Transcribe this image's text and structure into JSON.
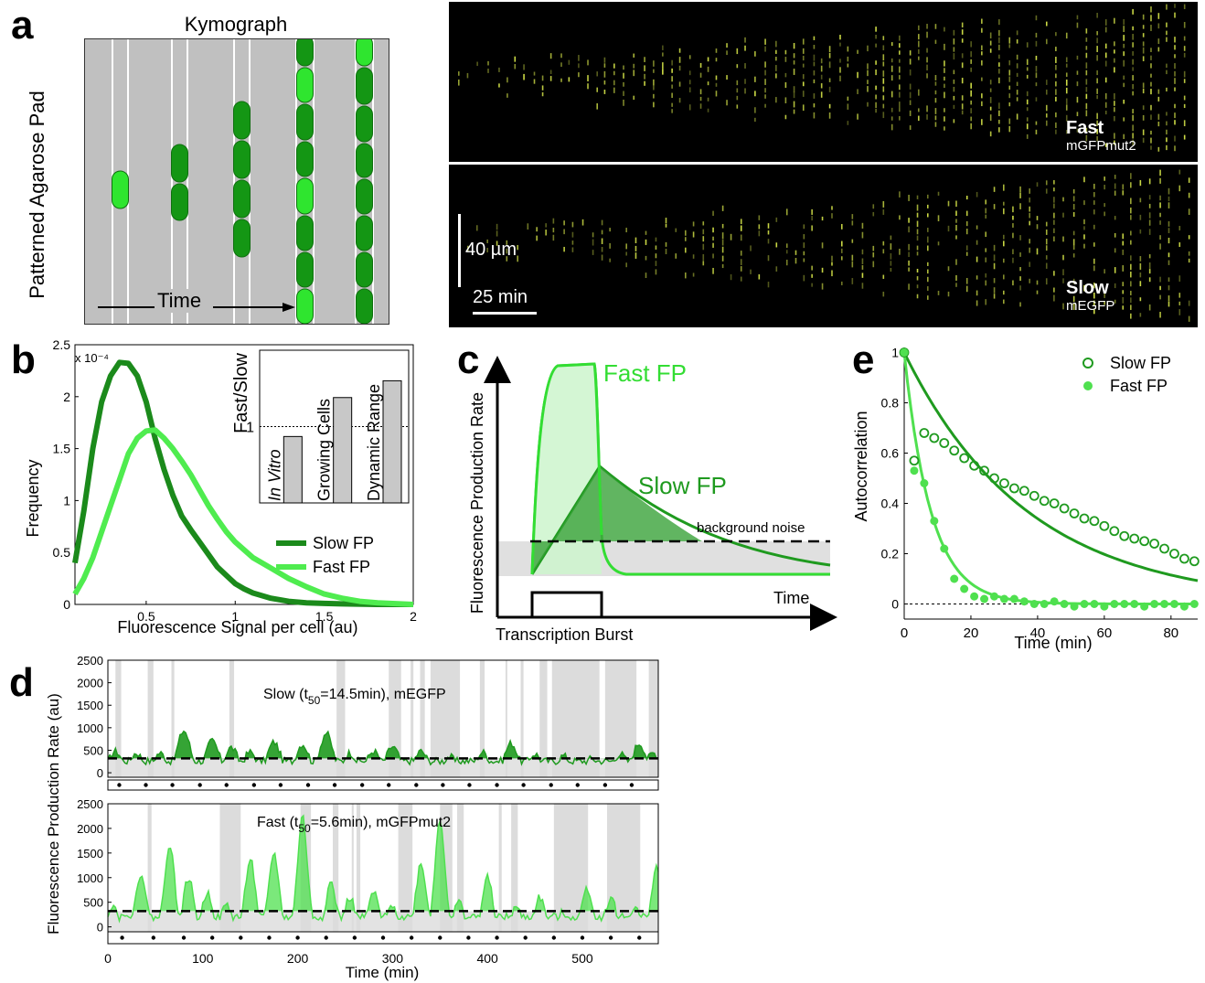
{
  "panel_letters": {
    "a": "a",
    "b": "b",
    "c": "c",
    "d": "d",
    "e": "e"
  },
  "panel_a": {
    "title": "Kymograph",
    "ylabel": "Patterned Agarose Pad",
    "time_label": "Time",
    "top_label": "Fast",
    "top_sublabel": "mGFPmut2",
    "bottom_label": "Slow",
    "bottom_sublabel": "mEGFP",
    "scale_vertical": "40 µm",
    "scale_horizontal": "25 min",
    "colors": {
      "pad": "#c0c0c0",
      "cell_dark": "#149614",
      "cell_light": "#2fe52f",
      "kymo_bg": "#000000",
      "kymo_dots": "#d9e84a"
    }
  },
  "chart_data": [
    {
      "id": "b",
      "type": "line",
      "xlabel": "Fluorescence Signal per cell (au)",
      "ylabel": "Frequency",
      "scale_note": "x 10⁻⁴",
      "xlim": [
        0.1,
        2
      ],
      "ylim": [
        0,
        2.5
      ],
      "xticks": [
        "0.5",
        "1",
        "1.5",
        "2"
      ],
      "yticks": [
        "0",
        "0.5",
        "1",
        "1.5",
        "2",
        "2.5"
      ],
      "series": [
        {
          "name": "Slow FP",
          "color": "#1b8a1b",
          "x": [
            0.1,
            0.15,
            0.2,
            0.25,
            0.3,
            0.35,
            0.4,
            0.45,
            0.5,
            0.55,
            0.6,
            0.65,
            0.7,
            0.75,
            0.8,
            0.85,
            0.9,
            0.95,
            1.0,
            1.05,
            1.1,
            1.2,
            1.3,
            1.4,
            1.5,
            1.6,
            1.8,
            2.0
          ],
          "y": [
            0.4,
            0.9,
            1.5,
            1.95,
            2.2,
            2.33,
            2.32,
            2.2,
            1.95,
            1.6,
            1.3,
            1.05,
            0.85,
            0.72,
            0.6,
            0.48,
            0.36,
            0.28,
            0.2,
            0.15,
            0.11,
            0.06,
            0.03,
            0.015,
            0.01,
            0.005,
            0,
            0
          ]
        },
        {
          "name": "Fast FP",
          "color": "#4fec4f",
          "x": [
            0.1,
            0.15,
            0.2,
            0.25,
            0.3,
            0.35,
            0.4,
            0.45,
            0.5,
            0.55,
            0.6,
            0.65,
            0.7,
            0.75,
            0.8,
            0.85,
            0.9,
            0.95,
            1.0,
            1.1,
            1.2,
            1.3,
            1.4,
            1.5,
            1.6,
            1.7,
            1.8,
            2.0
          ],
          "y": [
            0.1,
            0.25,
            0.45,
            0.7,
            0.95,
            1.2,
            1.45,
            1.6,
            1.67,
            1.68,
            1.6,
            1.5,
            1.38,
            1.25,
            1.1,
            0.95,
            0.82,
            0.7,
            0.6,
            0.45,
            0.35,
            0.25,
            0.17,
            0.1,
            0.06,
            0.03,
            0.015,
            0
          ]
        }
      ],
      "inset": {
        "ylabel": "Fast/Slow",
        "categories": [
          "In Vitro",
          "Growing Cells",
          "Dynamic Range"
        ],
        "values": [
          0.87,
          1.38,
          1.6
        ],
        "ylim": [
          0,
          2
        ],
        "reference_line": 1
      }
    },
    {
      "id": "c",
      "type": "area",
      "ylabel": "Fluorescence Production Rate",
      "xlabel": "Time",
      "burst_label": "Transcription Burst",
      "noise_label": "background noise",
      "series": [
        {
          "name": "Fast FP",
          "color": "#33dd33"
        },
        {
          "name": "Slow FP",
          "color": "#1f9a1f"
        }
      ]
    },
    {
      "id": "e",
      "type": "scatter",
      "xlabel": "Time (min)",
      "ylabel": "Autocorrelation",
      "xlim": [
        0,
        88
      ],
      "ylim": [
        -0.06,
        1.02
      ],
      "xticks": [
        "0",
        "20",
        "40",
        "60",
        "80"
      ],
      "yticks": [
        "0",
        "0.2",
        "0.4",
        "0.6",
        "0.8",
        "1"
      ],
      "series": [
        {
          "name": "Slow FP",
          "marker": "open-circle",
          "color": "#1f9a1f",
          "x": [
            0,
            3,
            6,
            9,
            12,
            15,
            18,
            21,
            24,
            27,
            30,
            33,
            36,
            39,
            42,
            45,
            48,
            51,
            54,
            57,
            60,
            63,
            66,
            69,
            72,
            75,
            78,
            81,
            84,
            87
          ],
          "y": [
            1.0,
            0.57,
            0.68,
            0.66,
            0.64,
            0.61,
            0.58,
            0.55,
            0.53,
            0.5,
            0.48,
            0.46,
            0.45,
            0.43,
            0.41,
            0.4,
            0.38,
            0.36,
            0.34,
            0.33,
            0.31,
            0.29,
            0.27,
            0.26,
            0.25,
            0.24,
            0.22,
            0.2,
            0.18,
            0.17
          ]
        },
        {
          "name": "Fast FP",
          "marker": "filled-circle",
          "color": "#4fe04f",
          "x": [
            0,
            3,
            6,
            9,
            12,
            15,
            18,
            21,
            24,
            27,
            30,
            33,
            36,
            39,
            42,
            45,
            48,
            51,
            54,
            57,
            60,
            63,
            66,
            69,
            72,
            75,
            78,
            81,
            84,
            87
          ],
          "y": [
            1.0,
            0.53,
            0.48,
            0.33,
            0.22,
            0.1,
            0.06,
            0.03,
            0.02,
            0.03,
            0.02,
            0.02,
            0.01,
            0.0,
            0.0,
            0.01,
            0.0,
            -0.01,
            0.0,
            0.0,
            -0.01,
            0.0,
            0.0,
            0.0,
            -0.01,
            0.0,
            0.0,
            0.0,
            -0.01,
            0.0
          ]
        }
      ],
      "fits": [
        {
          "name": "Slow FP",
          "color": "#1f9a1f",
          "tau": 37
        },
        {
          "name": "Fast FP",
          "color": "#4fe04f",
          "tau": 8
        }
      ]
    },
    {
      "id": "d",
      "type": "area",
      "xlabel": "Time (min)",
      "ylabel": "Fluorescence Production Rate (au)",
      "xlim": [
        0,
        580
      ],
      "ylim": [
        -100,
        2500
      ],
      "xticks": [
        "0",
        "100",
        "200",
        "300",
        "400",
        "500"
      ],
      "yticks": [
        "0",
        "500",
        "1000",
        "1500",
        "2000",
        "2500"
      ],
      "noise_level": 320,
      "subplots": [
        {
          "title_pre": "Slow (t",
          "title_sub": "50",
          "title_post": "=14.5min), mEGFP",
          "color": "#1f9a1f",
          "peaks": [
            [
              8,
              420
            ],
            [
              30,
              380
            ],
            [
              55,
              380
            ],
            [
              80,
              880
            ],
            [
              110,
              650
            ],
            [
              130,
              500
            ],
            [
              150,
              400
            ],
            [
              175,
              620
            ],
            [
              205,
              580
            ],
            [
              230,
              820
            ],
            [
              255,
              380
            ],
            [
              280,
              420
            ],
            [
              300,
              520
            ],
            [
              330,
              420
            ],
            [
              360,
              300
            ],
            [
              395,
              400
            ],
            [
              425,
              600
            ],
            [
              450,
              360
            ],
            [
              480,
              320
            ],
            [
              510,
              260
            ],
            [
              540,
              360
            ],
            [
              560,
              600
            ],
            [
              575,
              380
            ]
          ],
          "gray_bands": [
            [
              8,
              14
            ],
            [
              42,
              48
            ],
            [
              67,
              70
            ],
            [
              128,
              133
            ],
            [
              241,
              250
            ],
            [
              296,
              309
            ],
            [
              319,
              322
            ],
            [
              329,
              334
            ],
            [
              340,
              371
            ],
            [
              392,
              397
            ],
            [
              419,
              420
            ],
            [
              435,
              438
            ],
            [
              455,
              463
            ],
            [
              468,
              518
            ],
            [
              524,
              557
            ],
            [
              570,
              590
            ]
          ],
          "dots": [
            12,
            40,
            68,
            97,
            125,
            154,
            182,
            211,
            239,
            268,
            296,
            325,
            353,
            381,
            410,
            438,
            467,
            495,
            524,
            552
          ]
        },
        {
          "title_pre": "Fast (t",
          "title_sub": "50",
          "title_post": "=5.6min), mGFPmut2",
          "color": "#4fe04f",
          "peaks": [
            [
              5,
              450
            ],
            [
              20,
              300
            ],
            [
              35,
              1100
            ],
            [
              65,
              1700
            ],
            [
              85,
              1000
            ],
            [
              105,
              700
            ],
            [
              125,
              450
            ],
            [
              150,
              1400
            ],
            [
              175,
              1500
            ],
            [
              205,
              2250
            ],
            [
              235,
              900
            ],
            [
              255,
              600
            ],
            [
              280,
              700
            ],
            [
              300,
              450
            ],
            [
              330,
              1300
            ],
            [
              350,
              2200
            ],
            [
              370,
              500
            ],
            [
              400,
              1000
            ],
            [
              430,
              400
            ],
            [
              455,
              600
            ],
            [
              480,
              300
            ],
            [
              505,
              800
            ],
            [
              530,
              600
            ],
            [
              555,
              400
            ],
            [
              578,
              1200
            ]
          ],
          "gray_bands": [
            [
              42,
              46
            ],
            [
              118,
              140
            ],
            [
              203,
              214
            ],
            [
              237,
              243
            ],
            [
              257,
              259
            ],
            [
              262,
              266
            ],
            [
              306,
              321
            ],
            [
              350,
              363
            ],
            [
              368,
              375
            ],
            [
              412,
              415
            ],
            [
              425,
              432
            ],
            [
              470,
              506
            ],
            [
              526,
              561
            ]
          ],
          "dots": [
            15,
            48,
            80,
            110,
            140,
            170,
            200,
            230,
            260,
            290,
            320,
            350,
            380,
            410,
            440,
            470,
            500,
            530,
            560
          ]
        }
      ]
    }
  ]
}
